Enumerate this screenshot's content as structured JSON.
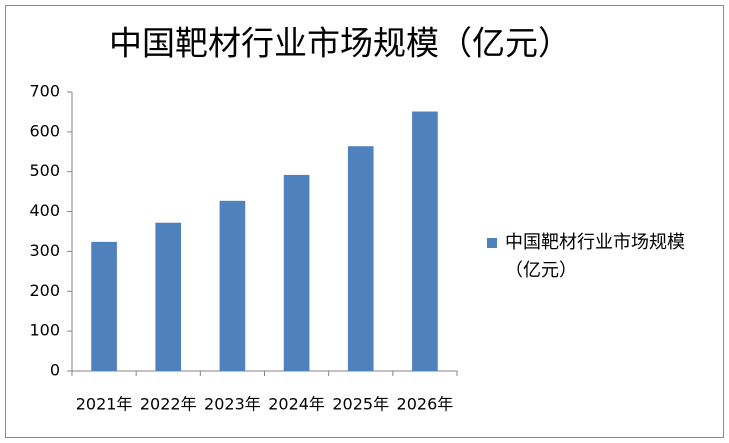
{
  "chart_data": {
    "type": "bar",
    "title": "中国靶材行业市场规模（亿元）",
    "categories": [
      "2021年",
      "2022年",
      "2023年",
      "2024年",
      "2025年",
      "2026年"
    ],
    "series": [
      {
        "name": "中国靶材行业市场规模（亿元）",
        "color": "#4f81bd",
        "values": [
          324,
          372,
          427,
          492,
          564,
          651
        ]
      }
    ],
    "ylim": [
      0,
      700
    ],
    "yticks": [
      0,
      100,
      200,
      300,
      400,
      500,
      600,
      700
    ],
    "legend": "right",
    "grid": false
  }
}
